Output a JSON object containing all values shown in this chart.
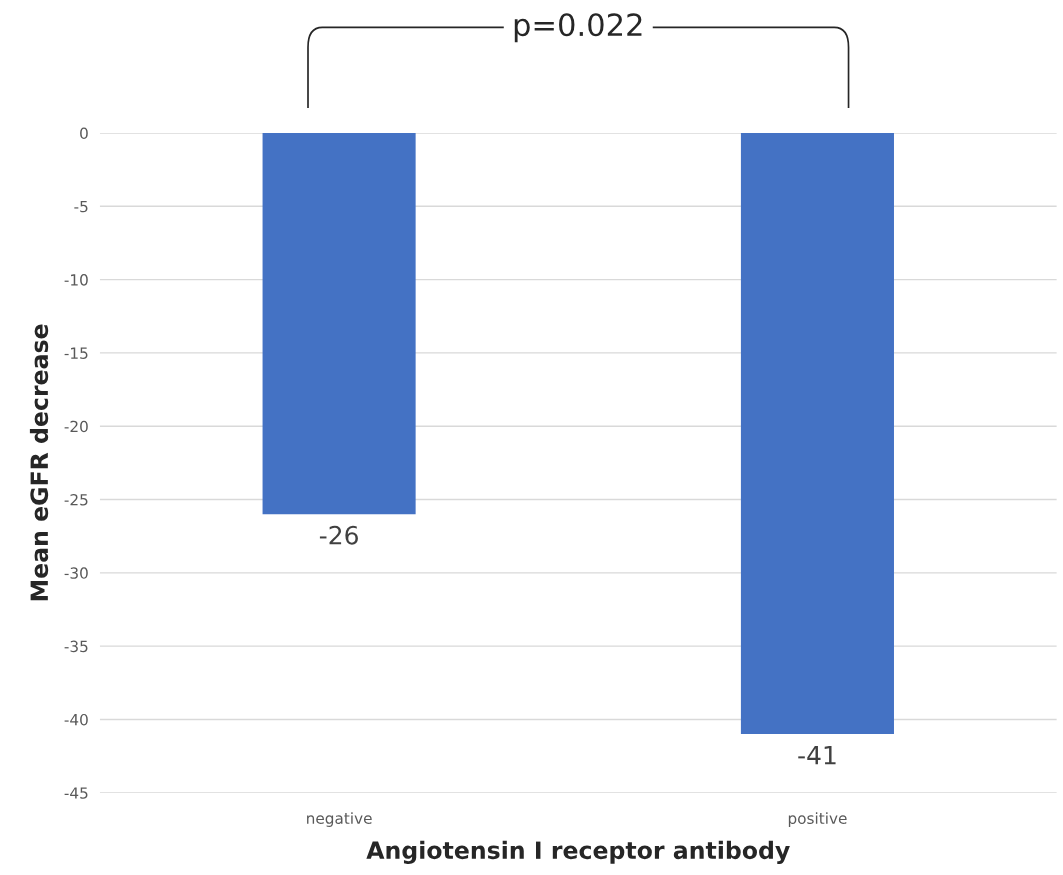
{
  "chart_data": {
    "type": "bar",
    "xlabel": "Angiotensin I receptor antibody",
    "ylabel": "Mean eGFR decrease",
    "categories": [
      "negative",
      "positive"
    ],
    "values": [
      -26,
      -41
    ],
    "color": "#4472c4",
    "ylim": [
      -45,
      0
    ],
    "yticks": [
      0,
      -5,
      -10,
      -15,
      -20,
      -25,
      -30,
      -35,
      -40,
      -45
    ],
    "grid": "y",
    "data_labels": true,
    "annotations": [
      "p=0.022"
    ]
  }
}
